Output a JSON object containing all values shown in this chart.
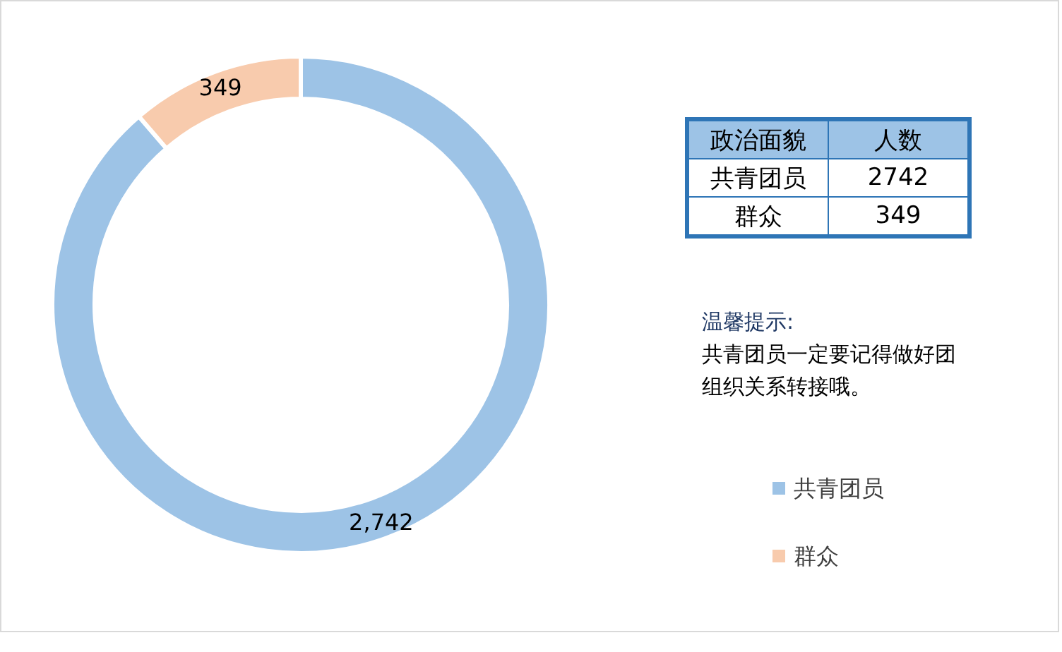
{
  "chart_data": {
    "type": "donut",
    "categories": [
      "共青团员",
      "群众"
    ],
    "values": [
      2742,
      349
    ],
    "colors": [
      "#9dc3e6",
      "#f8cbad"
    ],
    "value_labels": [
      "2,742",
      "349"
    ],
    "legend": "right",
    "annotations": [
      "政治面貌",
      "人数",
      "共青团员",
      "2742",
      "群众",
      "349",
      "温馨提示:",
      "共青团员一定要记得做好团组织关系转接哦。"
    ]
  }
}
